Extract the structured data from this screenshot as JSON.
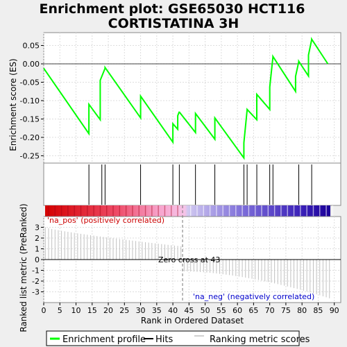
{
  "chart_data": {
    "type": "line",
    "title_lines": [
      "Enrichment plot: GSE65030 HCT116",
      "CORTISTATINA 3H"
    ],
    "xlabel": "Rank in Ordered Dataset",
    "ylabel_top": "Enrichment score (ES)",
    "ylabel_bottom": "Ranked list metric (PreRanked)",
    "xlim": [
      0,
      92
    ],
    "x_ticks": [
      "0",
      "5",
      "10",
      "15",
      "20",
      "25",
      "30",
      "35",
      "40",
      "45",
      "50",
      "55",
      "60",
      "65",
      "70",
      "75",
      "80",
      "85",
      "90"
    ],
    "es_ylim": [
      -0.27,
      0.085
    ],
    "es_ticks": [
      "0.05",
      "0.00",
      "-0.05",
      "-0.10",
      "-0.15",
      "-0.20",
      "-0.25"
    ],
    "metric_ylim": [
      -4,
      4
    ],
    "metric_ticks": [
      "3",
      "2",
      "1",
      "0",
      "-1",
      "-2",
      "-3"
    ],
    "es_curve": {
      "x": [
        0,
        14,
        14,
        17.5,
        17.5,
        19,
        19,
        30,
        30,
        40,
        40,
        41.5,
        41.5,
        42,
        42,
        47,
        47,
        53,
        53,
        62,
        62,
        63,
        63,
        66,
        66,
        70,
        70,
        71,
        71,
        78,
        78,
        79,
        79,
        82,
        82,
        83,
        83,
        88
      ],
      "y": [
        -0.012,
        -0.19,
        -0.11,
        -0.152,
        -0.045,
        -0.012,
        -0.01,
        -0.147,
        -0.088,
        -0.213,
        -0.163,
        -0.178,
        -0.141,
        -0.13,
        -0.131,
        -0.187,
        -0.135,
        -0.205,
        -0.147,
        -0.256,
        -0.215,
        -0.125,
        -0.124,
        -0.152,
        -0.083,
        -0.124,
        -0.063,
        0.019,
        0.02,
        -0.075,
        -0.034,
        0.006,
        0.007,
        -0.033,
        0.024,
        0.066,
        0.067,
        0.0
      ]
    },
    "hits": [
      14,
      18,
      19,
      30,
      40,
      42,
      47,
      53,
      62,
      63,
      66,
      70,
      71,
      79,
      83
    ],
    "metric": {
      "n": 89,
      "start": 3.0,
      "end": -3.6,
      "zero_cross_rank": 43
    },
    "annotations": {
      "pos_label": "'na_pos' (positively correlated)",
      "neg_label": "'na_neg' (negatively correlated)",
      "zero_cross": "Zero cross at 43"
    },
    "legend": [
      {
        "label": "Enrichment profile",
        "color": "#00ff00"
      },
      {
        "label": "Hits",
        "color": "#000000"
      },
      {
        "label": "Ranking metric scores",
        "color": "#c0c0c0"
      }
    ],
    "colors": {
      "es_line": "#00ff00",
      "pos": "#cc0000",
      "neg": "#0000cc",
      "metric_bar": "#c0c0c0"
    }
  }
}
